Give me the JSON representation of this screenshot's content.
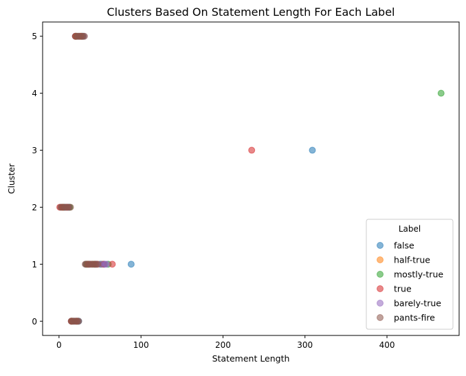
{
  "chart_data": {
    "type": "scatter",
    "title": "Clusters Based On Statement Length For Each Label",
    "xlabel": "Statement Length",
    "ylabel": "Cluster",
    "xlim": [
      -20,
      488
    ],
    "ylim": [
      -0.25,
      5.25
    ],
    "xticks": [
      0,
      100,
      200,
      300,
      400
    ],
    "yticks": [
      0,
      1,
      2,
      3,
      4,
      5
    ],
    "grid": false,
    "legend": {
      "title": "Label",
      "placement": "lower right"
    },
    "marker_alpha": 0.55,
    "series": [
      {
        "name": "false",
        "color": "#1f77b4",
        "points": [
          [
            33,
            1
          ],
          [
            37,
            1
          ],
          [
            41,
            1
          ],
          [
            45,
            1
          ],
          [
            50,
            1
          ],
          [
            55,
            1
          ],
          [
            88,
            1
          ],
          [
            309,
            3
          ],
          [
            3,
            2
          ],
          [
            7,
            2
          ],
          [
            12,
            2
          ],
          [
            15,
            0
          ],
          [
            20,
            0
          ],
          [
            24,
            0
          ],
          [
            20,
            5
          ],
          [
            28,
            5
          ]
        ]
      },
      {
        "name": "half-true",
        "color": "#ff7f0e",
        "points": [
          [
            35,
            1
          ],
          [
            40,
            1
          ],
          [
            47,
            1
          ],
          [
            4,
            2
          ],
          [
            9,
            2
          ],
          [
            16,
            0
          ],
          [
            22,
            0
          ],
          [
            21,
            5
          ],
          [
            26,
            5
          ]
        ]
      },
      {
        "name": "mostly-true",
        "color": "#2ca02c",
        "points": [
          [
            34,
            1
          ],
          [
            43,
            1
          ],
          [
            52,
            1
          ],
          [
            60,
            1
          ],
          [
            466,
            4
          ],
          [
            6,
            2
          ],
          [
            13,
            2
          ],
          [
            17,
            0
          ],
          [
            23,
            0
          ],
          [
            22,
            5
          ],
          [
            29,
            5
          ]
        ]
      },
      {
        "name": "true",
        "color": "#d62728",
        "points": [
          [
            36,
            1
          ],
          [
            44,
            1
          ],
          [
            54,
            1
          ],
          [
            65,
            1
          ],
          [
            235,
            3
          ],
          [
            1,
            2
          ],
          [
            5,
            2
          ],
          [
            10,
            2
          ],
          [
            15,
            0
          ],
          [
            21,
            0
          ],
          [
            20,
            5
          ],
          [
            27,
            5
          ]
        ]
      },
      {
        "name": "barely-true",
        "color": "#9467bd",
        "points": [
          [
            38,
            1
          ],
          [
            46,
            1
          ],
          [
            51,
            1
          ],
          [
            56,
            1
          ],
          [
            58,
            1
          ],
          [
            8,
            2
          ],
          [
            11,
            2
          ],
          [
            18,
            0
          ],
          [
            23,
            0
          ],
          [
            24,
            5
          ],
          [
            30,
            5
          ]
        ]
      },
      {
        "name": "pants-fire",
        "color": "#8c564b",
        "points": [
          [
            32,
            1
          ],
          [
            33,
            1
          ],
          [
            35,
            1
          ],
          [
            37,
            1
          ],
          [
            39,
            1
          ],
          [
            41,
            1
          ],
          [
            43,
            1
          ],
          [
            45,
            1
          ],
          [
            47,
            1
          ],
          [
            2,
            2
          ],
          [
            4,
            2
          ],
          [
            6,
            2
          ],
          [
            8,
            2
          ],
          [
            10,
            2
          ],
          [
            12,
            2
          ],
          [
            14,
            2
          ],
          [
            15,
            0
          ],
          [
            16,
            0
          ],
          [
            18,
            0
          ],
          [
            19,
            0
          ],
          [
            21,
            0
          ],
          [
            22,
            0
          ],
          [
            24,
            0
          ],
          [
            20,
            5
          ],
          [
            22,
            5
          ],
          [
            24,
            5
          ],
          [
            25,
            5
          ],
          [
            27,
            5
          ],
          [
            29,
            5
          ],
          [
            31,
            5
          ]
        ]
      }
    ]
  }
}
